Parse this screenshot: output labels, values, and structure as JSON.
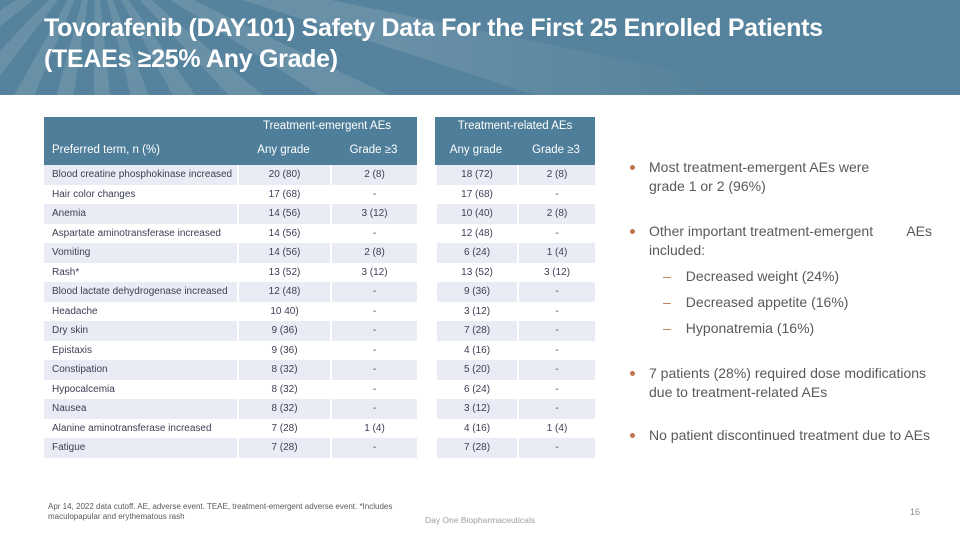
{
  "slide": {
    "title_line1": "Tovorafenib (DAY101) Safety Data For the First 25 Enrolled Patients",
    "title_line2": "(TEAEs ≥25% Any Grade)",
    "page_number": "16",
    "footer_brand": "Day One Biopharmaceuticals",
    "footnote_line1": "Apr 14, 2022 data cutoff. AE, adverse event. TEAE, treatment-emergent adverse event. *Includes",
    "footnote_line2": "maculopapular and erythematous rash"
  },
  "colors": {
    "header_band_teal": "#55829C",
    "table_header_teal": "#4E7E99",
    "row_stripe": "#E9EBF5",
    "bullet_accent_orange": "#C0764E",
    "body_text_gray": "#595959"
  },
  "table": {
    "row_header": "Preferred term, n (%)",
    "group1_header": "Treatment-emergent AEs",
    "group2_header": "Treatment-related AEs",
    "col_headers": [
      "Any grade",
      "Grade ≥3"
    ],
    "rows": [
      {
        "term": "Blood creatine phosphokinase increased",
        "te_any": "20 (80)",
        "te_g3": "2 (8)",
        "tr_any": "18 (72)",
        "tr_g3": "2 (8)"
      },
      {
        "term": "Hair color changes",
        "te_any": "17 (68)",
        "te_g3": "-",
        "tr_any": "17 (68)",
        "tr_g3": "-"
      },
      {
        "term": "Anemia",
        "te_any": "14 (56)",
        "te_g3": "3 (12)",
        "tr_any": "10 (40)",
        "tr_g3": "2 (8)"
      },
      {
        "term": "Aspartate aminotransferase increased",
        "te_any": "14 (56)",
        "te_g3": "-",
        "tr_any": "12 (48)",
        "tr_g3": "-"
      },
      {
        "term": "Vomiting",
        "te_any": "14 (56)",
        "te_g3": "2 (8)",
        "tr_any": "6 (24)",
        "tr_g3": "1 (4)"
      },
      {
        "term": "Rash*",
        "te_any": "13 (52)",
        "te_g3": "3 (12)",
        "tr_any": "13 (52)",
        "tr_g3": "3 (12)"
      },
      {
        "term": "Blood lactate dehydrogenase increased",
        "te_any": "12 (48)",
        "te_g3": "-",
        "tr_any": "9 (36)",
        "tr_g3": "-"
      },
      {
        "term": "Headache",
        "te_any": "10 40)",
        "te_g3": "-",
        "tr_any": "3 (12)",
        "tr_g3": "-"
      },
      {
        "term": "Dry skin",
        "te_any": "9 (36)",
        "te_g3": "-",
        "tr_any": "7 (28)",
        "tr_g3": "-"
      },
      {
        "term": "Epistaxis",
        "te_any": "9 (36)",
        "te_g3": "-",
        "tr_any": "4 (16)",
        "tr_g3": "-"
      },
      {
        "term": "Constipation",
        "te_any": "8 (32)",
        "te_g3": "-",
        "tr_any": "5 (20)",
        "tr_g3": "-"
      },
      {
        "term": "Hypocalcemia",
        "te_any": "8 (32)",
        "te_g3": "-",
        "tr_any": "6 (24)",
        "tr_g3": "-"
      },
      {
        "term": "Nausea",
        "te_any": "8 (32)",
        "te_g3": "-",
        "tr_any": "3 (12)",
        "tr_g3": "-"
      },
      {
        "term": "Alanine aminotransferase increased",
        "te_any": "7 (28)",
        "te_g3": "1 (4)",
        "tr_any": "4 (16)",
        "tr_g3": "1 (4)"
      },
      {
        "term": "Fatigue",
        "te_any": "7 (28)",
        "te_g3": "-",
        "tr_any": "7 (28)",
        "tr_g3": "-"
      }
    ]
  },
  "bullets": [
    {
      "lines": [
        "Most treatment-emergent AEs were",
        "grade 1 or 2 (96%)"
      ],
      "subs": []
    },
    {
      "lines": [
        {
          "left": "Other important treatment-emergent",
          "right": "AEs"
        },
        "included:"
      ],
      "subs": [
        "Decreased weight (24%)",
        "Decreased appetite (16%)",
        "Hyponatremia (16%)"
      ]
    },
    {
      "lines": [
        "7 patients (28%) required dose modifications",
        "due to treatment-related AEs"
      ],
      "subs": []
    },
    {
      "lines": [
        "No patient discontinued treatment due to AEs"
      ],
      "subs": []
    }
  ]
}
